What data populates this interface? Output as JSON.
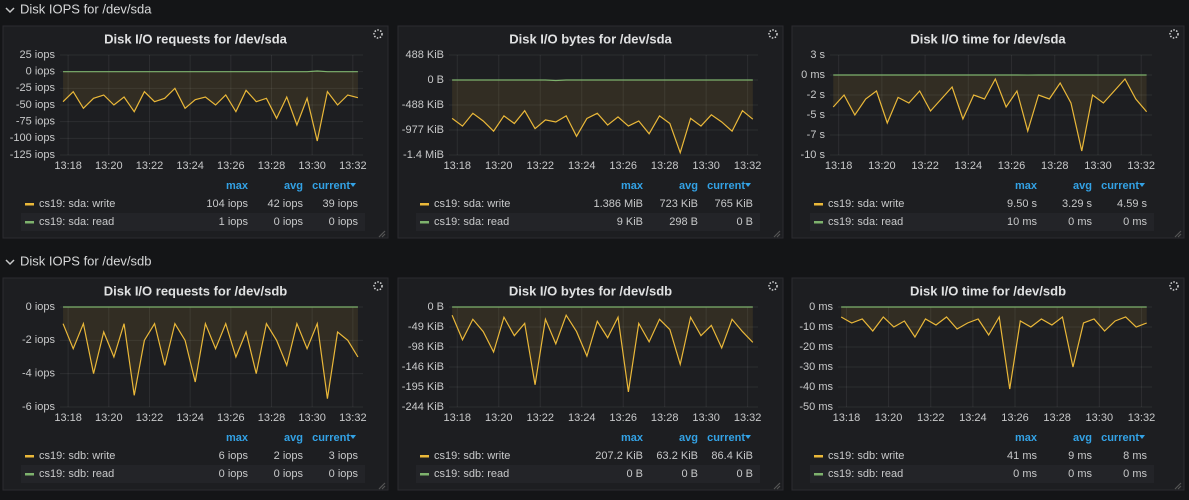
{
  "rows": [
    "Disk IOPS for /dev/sda",
    "Disk IOPS for /dev/sdb"
  ],
  "legend_columns": [
    "max",
    "avg",
    "current"
  ],
  "chart_data": [
    {
      "type": "line",
      "title": "Disk I/O requests for /dev/sda",
      "x": [
        17.75,
        18.25,
        18.75,
        19.25,
        19.75,
        20.25,
        20.75,
        21.25,
        21.75,
        22.25,
        22.75,
        23.25,
        23.75,
        24.25,
        24.75,
        25.25,
        25.75,
        26.25,
        26.75,
        27.25,
        27.75,
        28.25,
        28.75,
        29.25,
        29.75,
        30.25,
        30.75,
        31.25,
        31.75,
        32.25
      ],
      "xlim": [
        17.6,
        32.5
      ],
      "xticks": [
        {
          "value": 18,
          "label": "13:18"
        },
        {
          "value": 20,
          "label": "13:20"
        },
        {
          "value": 22,
          "label": "13:22"
        },
        {
          "value": 24,
          "label": "13:24"
        },
        {
          "value": 26,
          "label": "13:26"
        },
        {
          "value": 28,
          "label": "13:28"
        },
        {
          "value": 30,
          "label": "13:30"
        },
        {
          "value": 32,
          "label": "13:32"
        }
      ],
      "ylim": [
        -125,
        25
      ],
      "yticks": [
        {
          "value": 25,
          "label": "25 iops"
        },
        {
          "value": 0,
          "label": "0 iops"
        },
        {
          "value": -25,
          "label": "-25 iops"
        },
        {
          "value": -50,
          "label": "-50 iops"
        },
        {
          "value": -75,
          "label": "-75 iops"
        },
        {
          "value": -100,
          "label": "-100 iops"
        },
        {
          "value": -125,
          "label": "-125 iops"
        }
      ],
      "series": [
        {
          "name": "cs19: sda: write",
          "color": "#eab839",
          "stats": [
            "104 iops",
            "42 iops",
            "39 iops"
          ],
          "values": [
            -45,
            -30,
            -55,
            -40,
            -35,
            -50,
            -38,
            -60,
            -30,
            -45,
            -40,
            -25,
            -55,
            -42,
            -38,
            -50,
            -35,
            -60,
            -28,
            -45,
            -40,
            -70,
            -38,
            -80,
            -40,
            -104,
            -30,
            -50,
            -35,
            -39
          ]
        },
        {
          "name": "cs19: sda: read",
          "color": "#7eb26d",
          "stats": [
            "1 iops",
            "0 iops",
            "0 iops"
          ],
          "values": [
            0,
            0,
            0,
            0,
            0,
            0,
            0,
            0,
            0,
            0,
            0,
            0,
            0,
            0,
            0,
            0,
            0,
            0,
            0,
            0,
            0,
            0,
            0,
            0,
            0,
            1,
            0,
            0,
            0,
            0
          ]
        }
      ]
    },
    {
      "type": "line",
      "title": "Disk I/O bytes for /dev/sda",
      "x": [
        17.75,
        18.25,
        18.75,
        19.25,
        19.75,
        20.25,
        20.75,
        21.25,
        21.75,
        22.25,
        22.75,
        23.25,
        23.75,
        24.25,
        24.75,
        25.25,
        25.75,
        26.25,
        26.75,
        27.25,
        27.75,
        28.25,
        28.75,
        29.25,
        29.75,
        30.25,
        30.75,
        31.25,
        31.75,
        32.25
      ],
      "xlim": [
        17.6,
        32.5
      ],
      "xticks": [
        {
          "value": 18,
          "label": "13:18"
        },
        {
          "value": 20,
          "label": "13:20"
        },
        {
          "value": 22,
          "label": "13:22"
        },
        {
          "value": 24,
          "label": "13:24"
        },
        {
          "value": 26,
          "label": "13:26"
        },
        {
          "value": 28,
          "label": "13:28"
        },
        {
          "value": 30,
          "label": "13:30"
        },
        {
          "value": 32,
          "label": "13:32"
        }
      ],
      "ylim": [
        -1464.8,
        488.3
      ],
      "yticks": [
        {
          "value": 488.3,
          "label": "488 KiB"
        },
        {
          "value": 0,
          "label": "0 B"
        },
        {
          "value": -488.3,
          "label": "-488 KiB"
        },
        {
          "value": -976.6,
          "label": "-977 KiB"
        },
        {
          "value": -1464.8,
          "label": "-1.4 MiB"
        }
      ],
      "series": [
        {
          "name": "cs19: sda: write",
          "color": "#eab839",
          "stats": [
            "1.386 MiB",
            "723 KiB",
            "765 KiB"
          ],
          "values": [
            -750,
            -900,
            -650,
            -800,
            -1000,
            -700,
            -850,
            -600,
            -950,
            -780,
            -820,
            -700,
            -1100,
            -750,
            -650,
            -880,
            -720,
            -900,
            -800,
            -1050,
            -700,
            -850,
            -1419,
            -750,
            -900,
            -680,
            -820,
            -1000,
            -600,
            -765
          ]
        },
        {
          "name": "cs19: sda: read",
          "color": "#7eb26d",
          "stats": [
            "9 KiB",
            "298 B",
            "0 B"
          ],
          "values": [
            0,
            0,
            0,
            0,
            0,
            0,
            0,
            0,
            0,
            0,
            -9,
            0,
            0,
            0,
            0,
            0,
            0,
            0,
            0,
            0,
            0,
            0,
            0,
            0,
            0,
            0,
            0,
            0,
            0,
            0
          ]
        }
      ]
    },
    {
      "type": "line",
      "title": "Disk I/O time for /dev/sda",
      "x": [
        17.75,
        18.25,
        18.75,
        19.25,
        19.75,
        20.25,
        20.75,
        21.25,
        21.75,
        22.25,
        22.75,
        23.25,
        23.75,
        24.25,
        24.75,
        25.25,
        25.75,
        26.25,
        26.75,
        27.25,
        27.75,
        28.25,
        28.75,
        29.25,
        29.75,
        30.25,
        30.75,
        31.25,
        31.75,
        32.25
      ],
      "xlim": [
        17.6,
        32.5
      ],
      "xticks": [
        {
          "value": 18,
          "label": "13:18"
        },
        {
          "value": 20,
          "label": "13:20"
        },
        {
          "value": 22,
          "label": "13:22"
        },
        {
          "value": 24,
          "label": "13:24"
        },
        {
          "value": 26,
          "label": "13:26"
        },
        {
          "value": 28,
          "label": "13:28"
        },
        {
          "value": 30,
          "label": "13:30"
        },
        {
          "value": 32,
          "label": "13:32"
        }
      ],
      "ylim": [
        -10,
        2.5
      ],
      "yticks": [
        {
          "value": 2.5,
          "label": "3 s"
        },
        {
          "value": 0,
          "label": "0 ms"
        },
        {
          "value": -2.5,
          "label": "-2 s"
        },
        {
          "value": -5,
          "label": "-5 s"
        },
        {
          "value": -7.5,
          "label": "-7 s"
        },
        {
          "value": -10,
          "label": "-10 s"
        }
      ],
      "series": [
        {
          "name": "cs19: sda: write",
          "color": "#eab839",
          "stats": [
            "9.50 s",
            "3.29 s",
            "4.59 s"
          ],
          "values": [
            -4,
            -2.5,
            -5,
            -3,
            -2,
            -6,
            -2.8,
            -3.5,
            -2,
            -4.5,
            -3,
            -1.5,
            -5.5,
            -2.5,
            -3,
            -0.5,
            -4,
            -2,
            -7,
            -2.5,
            -3,
            -1,
            -3.5,
            -9.5,
            -2.5,
            -3.5,
            -2,
            -0.5,
            -3,
            -4.59
          ]
        },
        {
          "name": "cs19: sda: read",
          "color": "#7eb26d",
          "stats": [
            "10 ms",
            "0 ms",
            "0 ms"
          ],
          "values": [
            0,
            0,
            0,
            0,
            0,
            0,
            0,
            0,
            0,
            0,
            0,
            0,
            0,
            0,
            0,
            0,
            0,
            0,
            -0.01,
            0,
            0,
            0,
            0,
            0,
            0,
            0,
            0,
            0,
            0,
            0
          ]
        }
      ]
    },
    {
      "type": "line",
      "title": "Disk I/O requests for /dev/sdb",
      "x": [
        17.75,
        18.25,
        18.75,
        19.25,
        19.75,
        20.25,
        20.75,
        21.25,
        21.75,
        22.25,
        22.75,
        23.25,
        23.75,
        24.25,
        24.75,
        25.25,
        25.75,
        26.25,
        26.75,
        27.25,
        27.75,
        28.25,
        28.75,
        29.25,
        29.75,
        30.25,
        30.75,
        31.25,
        31.75,
        32.25
      ],
      "xlim": [
        17.6,
        32.5
      ],
      "xticks": [
        {
          "value": 18,
          "label": "13:18"
        },
        {
          "value": 20,
          "label": "13:20"
        },
        {
          "value": 22,
          "label": "13:22"
        },
        {
          "value": 24,
          "label": "13:24"
        },
        {
          "value": 26,
          "label": "13:26"
        },
        {
          "value": 28,
          "label": "13:28"
        },
        {
          "value": 30,
          "label": "13:30"
        },
        {
          "value": 32,
          "label": "13:32"
        }
      ],
      "ylim": [
        -6,
        0
      ],
      "yticks": [
        {
          "value": 0,
          "label": "0 iops"
        },
        {
          "value": -2,
          "label": "-2 iops"
        },
        {
          "value": -4,
          "label": "-4 iops"
        },
        {
          "value": -6,
          "label": "-6 iops"
        }
      ],
      "series": [
        {
          "name": "cs19: sdb: write",
          "color": "#eab839",
          "stats": [
            "6 iops",
            "2 iops",
            "3 iops"
          ],
          "values": [
            -1,
            -2.5,
            -1,
            -4,
            -1.5,
            -3,
            -1,
            -5.3,
            -2,
            -1,
            -3.5,
            -1,
            -2,
            -4.5,
            -1,
            -2.5,
            -1,
            -3,
            -1.5,
            -4,
            -1,
            -2,
            -3.5,
            -1,
            -2.5,
            -1,
            -5.5,
            -1.5,
            -2,
            -3
          ]
        },
        {
          "name": "cs19: sdb: read",
          "color": "#7eb26d",
          "stats": [
            "0 iops",
            "0 iops",
            "0 iops"
          ],
          "values": [
            0,
            0,
            0,
            0,
            0,
            0,
            0,
            0,
            0,
            0,
            0,
            0,
            0,
            0,
            0,
            0,
            0,
            0,
            0,
            0,
            0,
            0,
            0,
            0,
            0,
            0,
            0,
            0,
            0,
            0
          ]
        }
      ]
    },
    {
      "type": "line",
      "title": "Disk I/O bytes for /dev/sdb",
      "x": [
        17.75,
        18.25,
        18.75,
        19.25,
        19.75,
        20.25,
        20.75,
        21.25,
        21.75,
        22.25,
        22.75,
        23.25,
        23.75,
        24.25,
        24.75,
        25.25,
        25.75,
        26.25,
        26.75,
        27.25,
        27.75,
        28.25,
        28.75,
        29.25,
        29.75,
        30.25,
        30.75,
        31.25,
        31.75,
        32.25
      ],
      "xlim": [
        17.6,
        32.5
      ],
      "xticks": [
        {
          "value": 18,
          "label": "13:18"
        },
        {
          "value": 20,
          "label": "13:20"
        },
        {
          "value": 22,
          "label": "13:22"
        },
        {
          "value": 24,
          "label": "13:24"
        },
        {
          "value": 26,
          "label": "13:26"
        },
        {
          "value": 28,
          "label": "13:28"
        },
        {
          "value": 30,
          "label": "13:30"
        },
        {
          "value": 32,
          "label": "13:32"
        }
      ],
      "ylim": [
        -244.1,
        0
      ],
      "yticks": [
        {
          "value": 0,
          "label": "0 B"
        },
        {
          "value": -48.8,
          "label": "-49 KiB"
        },
        {
          "value": -97.7,
          "label": "-98 KiB"
        },
        {
          "value": -146.5,
          "label": "-146 KiB"
        },
        {
          "value": -195.3,
          "label": "-195 KiB"
        },
        {
          "value": -244.1,
          "label": "-244 KiB"
        }
      ],
      "series": [
        {
          "name": "cs19: sdb: write",
          "color": "#eab839",
          "stats": [
            "207.2 KiB",
            "63.2 KiB",
            "86.4 KiB"
          ],
          "values": [
            -20,
            -80,
            -30,
            -60,
            -110,
            -25,
            -70,
            -40,
            -190,
            -30,
            -90,
            -20,
            -60,
            -120,
            -35,
            -75,
            -25,
            -207.2,
            -40,
            -85,
            -30,
            -55,
            -140,
            -25,
            -70,
            -45,
            -100,
            -30,
            -60,
            -86.4
          ]
        },
        {
          "name": "cs19: sdb: read",
          "color": "#7eb26d",
          "stats": [
            "0 B",
            "0 B",
            "0 B"
          ],
          "values": [
            0,
            0,
            0,
            0,
            0,
            0,
            0,
            0,
            0,
            0,
            0,
            0,
            0,
            0,
            0,
            0,
            0,
            0,
            0,
            0,
            0,
            0,
            0,
            0,
            0,
            0,
            0,
            0,
            0,
            0
          ]
        }
      ]
    },
    {
      "type": "line",
      "title": "Disk I/O time for /dev/sdb",
      "x": [
        17.75,
        18.25,
        18.75,
        19.25,
        19.75,
        20.25,
        20.75,
        21.25,
        21.75,
        22.25,
        22.75,
        23.25,
        23.75,
        24.25,
        24.75,
        25.25,
        25.75,
        26.25,
        26.75,
        27.25,
        27.75,
        28.25,
        28.75,
        29.25,
        29.75,
        30.25,
        30.75,
        31.25,
        31.75,
        32.25
      ],
      "xlim": [
        17.6,
        32.5
      ],
      "xticks": [
        {
          "value": 18,
          "label": "13:18"
        },
        {
          "value": 20,
          "label": "13:20"
        },
        {
          "value": 22,
          "label": "13:22"
        },
        {
          "value": 24,
          "label": "13:24"
        },
        {
          "value": 26,
          "label": "13:26"
        },
        {
          "value": 28,
          "label": "13:28"
        },
        {
          "value": 30,
          "label": "13:30"
        },
        {
          "value": 32,
          "label": "13:32"
        }
      ],
      "ylim": [
        -50,
        0
      ],
      "yticks": [
        {
          "value": 0,
          "label": "0 ms"
        },
        {
          "value": -10,
          "label": "-10 ms"
        },
        {
          "value": -20,
          "label": "-20 ms"
        },
        {
          "value": -30,
          "label": "-30 ms"
        },
        {
          "value": -40,
          "label": "-40 ms"
        },
        {
          "value": -50,
          "label": "-50 ms"
        }
      ],
      "series": [
        {
          "name": "cs19: sdb: write",
          "color": "#eab839",
          "stats": [
            "41 ms",
            "9 ms",
            "8 ms"
          ],
          "values": [
            -5,
            -8,
            -6,
            -12,
            -5,
            -10,
            -7,
            -15,
            -6,
            -9,
            -5,
            -11,
            -8,
            -6,
            -14,
            -5,
            -41,
            -7,
            -10,
            -6,
            -9,
            -5,
            -30,
            -8,
            -6,
            -12,
            -7,
            -5,
            -10,
            -8
          ]
        },
        {
          "name": "cs19: sdb: read",
          "color": "#7eb26d",
          "stats": [
            "0 ms",
            "0 ms",
            "0 ms"
          ],
          "values": [
            0,
            0,
            0,
            0,
            0,
            0,
            0,
            0,
            0,
            0,
            0,
            0,
            0,
            0,
            0,
            0,
            0,
            0,
            0,
            0,
            0,
            0,
            0,
            0,
            0,
            0,
            0,
            0,
            0,
            0
          ]
        }
      ]
    }
  ]
}
